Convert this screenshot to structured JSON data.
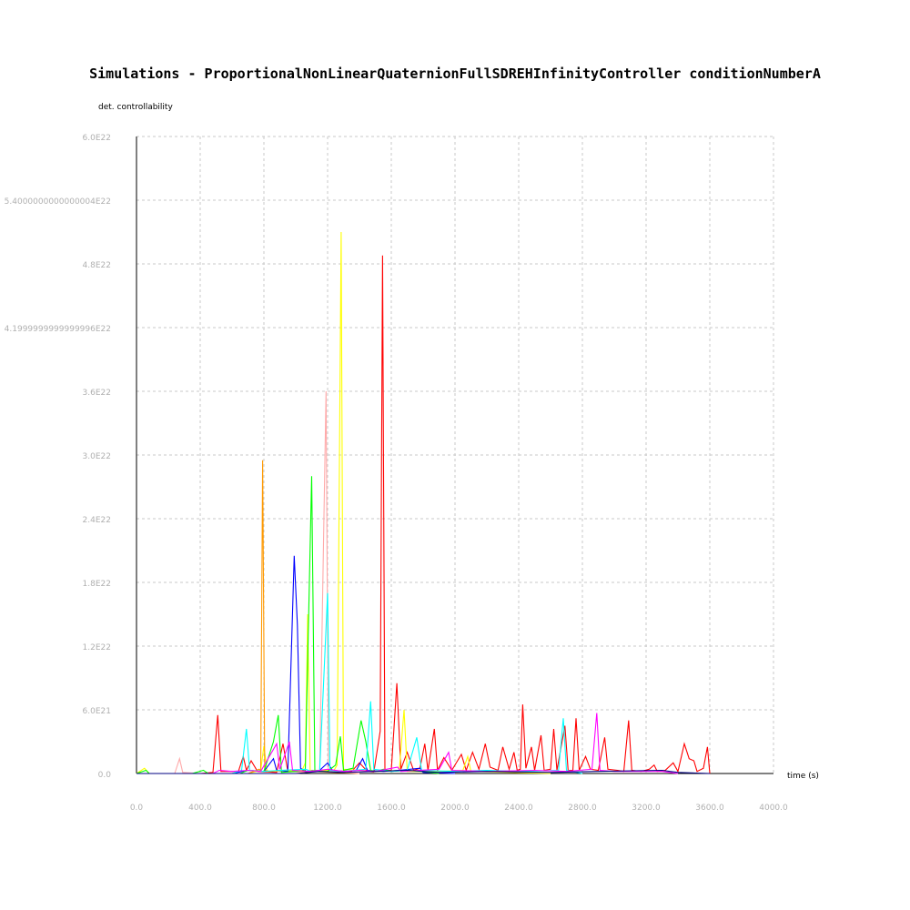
{
  "chart_data": {
    "type": "line",
    "title": "Simulations - ProportionalNonLinearQuaternionFullSDREHInfinityController conditionNumberA",
    "ylabel": "det. controllability",
    "xlabel": "time (s)",
    "xlim": [
      0,
      4000
    ],
    "ylim": [
      0,
      6e+22
    ],
    "grid": true,
    "x_ticks": [
      0,
      400,
      800,
      1200,
      1600,
      2000,
      2400,
      2800,
      3200,
      3600,
      4000
    ],
    "x_tick_labels": [
      "0.0",
      "400.0",
      "800.0",
      "1200.0",
      "1600.0",
      "2000.0",
      "2400.0",
      "2800.0",
      "3200.0",
      "3600.0",
      "4000.0"
    ],
    "y_ticks": [
      0,
      6e+21,
      1.2e+22,
      1.8e+22,
      2.4e+22,
      3e+22,
      3.6e+22,
      4.2e+22,
      4.8e+22,
      5.4e+22,
      6e+22
    ],
    "y_tick_labels": [
      "0.0",
      "6.0E21",
      "1.2E22",
      "1.8E22",
      "2.4E22",
      "3.0E22",
      "3.6E22",
      "4.1999999999999996E22",
      "4.8E22",
      "5.4000000000000004E22",
      "6.0E22"
    ],
    "series": [
      {
        "color": "#ff0000",
        "points": [
          [
            0,
            0
          ],
          [
            400,
            0
          ],
          [
            480,
            1e+20
          ],
          [
            510,
            5.5e+21
          ],
          [
            530,
            2e+20
          ],
          [
            640,
            2e+20
          ],
          [
            670,
            1.6e+21
          ],
          [
            690,
            3e+20
          ],
          [
            720,
            1.2e+21
          ],
          [
            760,
            2e+20
          ],
          [
            880,
            1e+20
          ],
          [
            920,
            2.8e+21
          ],
          [
            950,
            2e+20
          ],
          [
            1100,
            2e+20
          ],
          [
            1200,
            3e+20
          ],
          [
            1350,
            2e+20
          ],
          [
            1400,
            1e+21
          ],
          [
            1450,
            2e+20
          ],
          [
            1490,
            1.5e+20
          ],
          [
            1515,
            2.5e+21
          ],
          [
            1530,
            4e+21
          ],
          [
            1545,
            4.88e+22
          ],
          [
            1560,
            3e+20
          ],
          [
            1600,
            3e+20
          ],
          [
            1635,
            8.5e+21
          ],
          [
            1660,
            4e+20
          ],
          [
            1700,
            2e+21
          ],
          [
            1740,
            3e+20
          ],
          [
            1780,
            5e+20
          ],
          [
            1810,
            2.8e+21
          ],
          [
            1830,
            3e+20
          ],
          [
            1870,
            4.2e+21
          ],
          [
            1890,
            3e+20
          ],
          [
            1930,
            1.5e+21
          ],
          [
            1980,
            3e+20
          ],
          [
            2040,
            1.8e+21
          ],
          [
            2070,
            3e+20
          ],
          [
            2110,
            2e+21
          ],
          [
            2150,
            4e+20
          ],
          [
            2190,
            2.8e+21
          ],
          [
            2220,
            6e+20
          ],
          [
            2270,
            3e+20
          ],
          [
            2300,
            2.5e+21
          ],
          [
            2340,
            4e+20
          ],
          [
            2370,
            2e+21
          ],
          [
            2390,
            3e+20
          ],
          [
            2410,
            4e+20
          ],
          [
            2425,
            6.5e+21
          ],
          [
            2445,
            5e+20
          ],
          [
            2480,
            2.5e+21
          ],
          [
            2500,
            3e+20
          ],
          [
            2540,
            3.6e+21
          ],
          [
            2560,
            3e+20
          ],
          [
            2600,
            4e+20
          ],
          [
            2620,
            4.2e+21
          ],
          [
            2640,
            3e+20
          ],
          [
            2690,
            4.5e+21
          ],
          [
            2710,
            3e+20
          ],
          [
            2740,
            3e+20
          ],
          [
            2760,
            5.2e+21
          ],
          [
            2780,
            3e+20
          ],
          [
            2820,
            1.6e+21
          ],
          [
            2850,
            4e+20
          ],
          [
            2900,
            3e+20
          ],
          [
            2940,
            3.4e+21
          ],
          [
            2960,
            4e+20
          ],
          [
            3020,
            3e+20
          ],
          [
            3060,
            2e+20
          ],
          [
            3090,
            5e+21
          ],
          [
            3110,
            3e+20
          ],
          [
            3170,
            2e+20
          ],
          [
            3220,
            4e+20
          ],
          [
            3250,
            8e+20
          ],
          [
            3270,
            2e+20
          ],
          [
            3320,
            3e+20
          ],
          [
            3370,
            1e+21
          ],
          [
            3400,
            2e+20
          ],
          [
            3440,
            2.8e+21
          ],
          [
            3470,
            1.4e+21
          ],
          [
            3500,
            1.2e+21
          ],
          [
            3520,
            2e+20
          ],
          [
            3560,
            5e+20
          ],
          [
            3585,
            2.5e+21
          ],
          [
            3600,
            0
          ]
        ]
      },
      {
        "color": "#ffff00",
        "points": [
          [
            0,
            0
          ],
          [
            50,
            5e+20
          ],
          [
            80,
            0
          ],
          [
            400,
            0
          ],
          [
            700,
            0
          ],
          [
            780,
            3e+20
          ],
          [
            800,
            2.6e+21
          ],
          [
            820,
            2e+20
          ],
          [
            1040,
            3e+20
          ],
          [
            1060,
            1e+21
          ],
          [
            1075,
            1.5e+22
          ],
          [
            1090,
            3e+20
          ],
          [
            1240,
            3e+20
          ],
          [
            1260,
            8e+20
          ],
          [
            1285,
            5.1e+22
          ],
          [
            1300,
            4e+20
          ],
          [
            1500,
            2e+20
          ],
          [
            1650,
            3e+20
          ],
          [
            1680,
            6e+21
          ],
          [
            1700,
            2e+20
          ],
          [
            1900,
            2e+20
          ],
          [
            2050,
            3e+20
          ],
          [
            2080,
            1.6e+21
          ],
          [
            2100,
            2e+20
          ],
          [
            2600,
            0
          ]
        ]
      },
      {
        "color": "#ff9900",
        "points": [
          [
            0,
            0
          ],
          [
            700,
            0
          ],
          [
            770,
            4e+20
          ],
          [
            780,
            3e+20
          ],
          [
            792,
            2.95e+22
          ],
          [
            805,
            3e+20
          ],
          [
            840,
            2e+20
          ],
          [
            900,
            3e+20
          ],
          [
            960,
            2e+20
          ],
          [
            1100,
            2e+20
          ],
          [
            1400,
            0
          ]
        ]
      },
      {
        "color": "#ffaaaa",
        "points": [
          [
            0,
            0
          ],
          [
            240,
            0
          ],
          [
            270,
            1.4e+21
          ],
          [
            290,
            1e+20
          ],
          [
            400,
            0
          ],
          [
            1000,
            0
          ],
          [
            1150,
            2e+20
          ],
          [
            1190,
            3.6e+22
          ],
          [
            1205,
            4e+20
          ],
          [
            1250,
            2e+20
          ],
          [
            1400,
            0
          ]
        ]
      },
      {
        "color": "#0000ff",
        "points": [
          [
            0,
            0
          ],
          [
            600,
            0
          ],
          [
            700,
            3e+20
          ],
          [
            800,
            2e+20
          ],
          [
            860,
            1.4e+21
          ],
          [
            880,
            3e+20
          ],
          [
            950,
            2e+20
          ],
          [
            990,
            2.05e+22
          ],
          [
            1010,
            1.4e+22
          ],
          [
            1030,
            5e+20
          ],
          [
            1060,
            2e+20
          ],
          [
            1150,
            3e+20
          ],
          [
            1200,
            1e+21
          ],
          [
            1230,
            3e+20
          ],
          [
            1300,
            2e+20
          ],
          [
            1380,
            3e+20
          ],
          [
            1420,
            1.4e+21
          ],
          [
            1450,
            3e+20
          ],
          [
            1550,
            2e+20
          ],
          [
            1650,
            3e+20
          ],
          [
            1780,
            5e+20
          ],
          [
            1800,
            1e+20
          ],
          [
            2000,
            0
          ]
        ]
      },
      {
        "color": "#00ff00",
        "points": [
          [
            0,
            0
          ],
          [
            60,
            3e+20
          ],
          [
            80,
            0
          ],
          [
            350,
            0
          ],
          [
            420,
            3e+20
          ],
          [
            450,
            0
          ],
          [
            650,
            0
          ],
          [
            700,
            3e+20
          ],
          [
            800,
            2e+20
          ],
          [
            860,
            3e+21
          ],
          [
            890,
            5.5e+21
          ],
          [
            910,
            1e+20
          ],
          [
            1000,
            2e+20
          ],
          [
            1060,
            3e+20
          ],
          [
            1100,
            2.8e+22
          ],
          [
            1120,
            2e+20
          ],
          [
            1200,
            2e+20
          ],
          [
            1250,
            8e+20
          ],
          [
            1280,
            3.5e+21
          ],
          [
            1300,
            3e+20
          ],
          [
            1360,
            5e+20
          ],
          [
            1410,
            5e+21
          ],
          [
            1440,
            3e+21
          ],
          [
            1470,
            3e+20
          ],
          [
            1500,
            2e+20
          ],
          [
            1550,
            4e+20
          ],
          [
            1600,
            2e+20
          ],
          [
            1700,
            3e+20
          ],
          [
            1800,
            2e+20
          ],
          [
            1900,
            0
          ]
        ]
      },
      {
        "color": "#00ffff",
        "points": [
          [
            0,
            0
          ],
          [
            600,
            0
          ],
          [
            660,
            3e+20
          ],
          [
            690,
            4.2e+21
          ],
          [
            710,
            3e+20
          ],
          [
            800,
            2e+20
          ],
          [
            900,
            3e+20
          ],
          [
            1060,
            4e+20
          ],
          [
            1100,
            2e+20
          ],
          [
            1150,
            3e+20
          ],
          [
            1200,
            1.7e+22
          ],
          [
            1215,
            3e+20
          ],
          [
            1300,
            2e+20
          ],
          [
            1440,
            4e+20
          ],
          [
            1470,
            6.8e+21
          ],
          [
            1490,
            4e+20
          ],
          [
            1600,
            2e+20
          ],
          [
            1700,
            3e+20
          ],
          [
            1760,
            3.4e+21
          ],
          [
            1790,
            3e+20
          ],
          [
            2000,
            2e+20
          ],
          [
            2200,
            3e+20
          ],
          [
            2400,
            2e+20
          ],
          [
            2650,
            3e+20
          ],
          [
            2680,
            5.2e+21
          ],
          [
            2700,
            3e+20
          ],
          [
            2800,
            0
          ]
        ]
      },
      {
        "color": "#ff00ff",
        "points": [
          [
            0,
            0
          ],
          [
            480,
            0
          ],
          [
            520,
            3e+20
          ],
          [
            600,
            2e+20
          ],
          [
            700,
            3e+20
          ],
          [
            780,
            2e+20
          ],
          [
            880,
            2.8e+21
          ],
          [
            900,
            4e+20
          ],
          [
            960,
            3e+21
          ],
          [
            980,
            3e+20
          ],
          [
            1100,
            2e+20
          ],
          [
            1200,
            4e+20
          ],
          [
            1300,
            2e+20
          ],
          [
            1400,
            3e+20
          ],
          [
            1500,
            2e+20
          ],
          [
            1640,
            6e+20
          ],
          [
            1660,
            2e+20
          ],
          [
            1900,
            4e+20
          ],
          [
            1960,
            2e+21
          ],
          [
            1980,
            3e+20
          ],
          [
            2200,
            2e+20
          ],
          [
            2500,
            3e+20
          ],
          [
            2700,
            2e+20
          ],
          [
            2860,
            4e+20
          ],
          [
            2890,
            5.7e+21
          ],
          [
            2910,
            3e+20
          ],
          [
            3000,
            2e+20
          ],
          [
            3300,
            2e+20
          ],
          [
            3400,
            0
          ]
        ]
      },
      {
        "color": "#000080",
        "points": [
          [
            0,
            0
          ],
          [
            1000,
            0
          ],
          [
            1150,
            2e+20
          ],
          [
            1300,
            1e+20
          ],
          [
            1500,
            2e+20
          ],
          [
            1700,
            3e+20
          ],
          [
            1900,
            1e+20
          ],
          [
            2200,
            2e+20
          ],
          [
            2600,
            1e+20
          ],
          [
            2900,
            2e+20
          ],
          [
            3300,
            3e+20
          ],
          [
            3400,
            1e+20
          ],
          [
            3600,
            0
          ]
        ]
      }
    ]
  }
}
